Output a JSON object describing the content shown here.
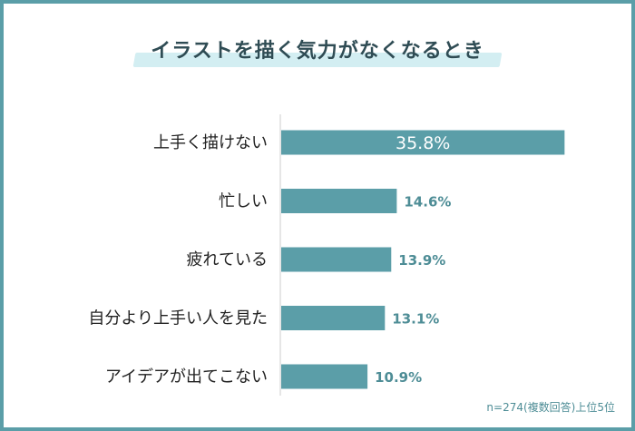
{
  "chart_data": {
    "type": "bar",
    "orientation": "horizontal",
    "title": "イラストを描く気力がなくなるとき",
    "categories": [
      "上手く描けない",
      "忙しい",
      "疲れている",
      "自分より上手い人を見た",
      "アイデアが出てこない"
    ],
    "values": [
      35.8,
      14.6,
      13.9,
      13.1,
      10.9
    ],
    "value_labels": [
      "35.8%",
      "14.6%",
      "13.9%",
      "13.1%",
      "10.9%"
    ],
    "xlim": [
      0,
      40
    ],
    "bar_color": "#5b9ea8",
    "grid": false,
    "legend": "none",
    "note": "n=274(複数回答)上位5位"
  }
}
